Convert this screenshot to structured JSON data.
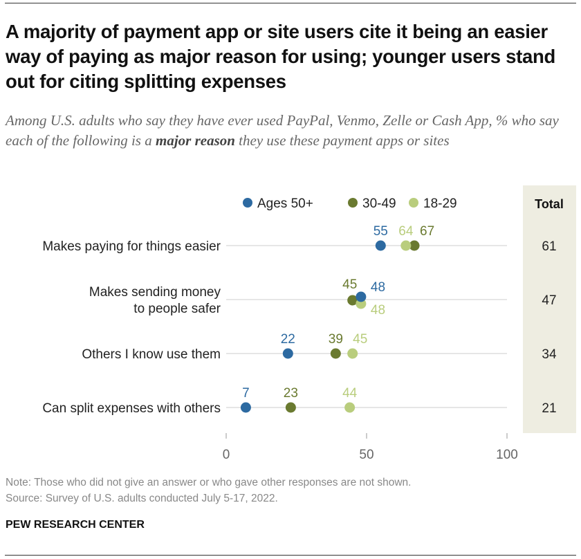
{
  "title": "A majority of payment app or site users cite it being an easier way of paying as major reason for using; younger users stand out for citing splitting expenses",
  "subtitle": {
    "before": "Among U.S. adults who say they have ever used PayPal, Venmo, Zelle or Cash App, % who say each of the following is a ",
    "bold": "major reason",
    "after": " they use these payment apps or sites"
  },
  "note": "Note: Those who did not give an answer or who gave other responses are not shown.",
  "source": "Source: Survey of U.S. adults conducted July 5-17, 2022.",
  "brand": "PEW RESEARCH CENTER",
  "chart_data": {
    "type": "scatter",
    "subtype": "dot-plot",
    "xlim": [
      0,
      100
    ],
    "xticks": [
      "0",
      "50",
      "100"
    ],
    "legend_position": "top",
    "total_header": "Total",
    "series": [
      {
        "name": "Ages 50+",
        "color": "#2d6aa1",
        "values": [
          55,
          48,
          22,
          7
        ]
      },
      {
        "name": "30-49",
        "color": "#6a7a30",
        "values": [
          67,
          45,
          39,
          23
        ]
      },
      {
        "name": "18-29",
        "color": "#b9cd7d",
        "values": [
          64,
          48,
          45,
          44
        ]
      }
    ],
    "categories": [
      [
        "Makes paying for things easier"
      ],
      [
        "Makes sending money",
        "to people safer"
      ],
      [
        "Others I know use them"
      ],
      [
        "Can split expenses with others"
      ]
    ],
    "totals": [
      61,
      47,
      34,
      21
    ],
    "total_bg_color": "#eeede1"
  }
}
